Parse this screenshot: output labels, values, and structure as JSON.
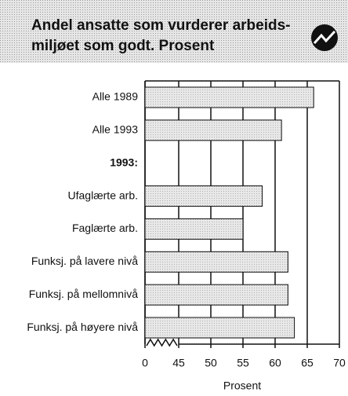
{
  "chart_data": {
    "type": "barh",
    "title": [
      "Andel ansatte som vurderer arbeids-",
      "miljøet som godt. Prosent"
    ],
    "categories": [
      "Alle 1989",
      "Alle 1993",
      "1993:",
      "Ufaglærte arb.",
      "Faglærte arb.",
      "Funksj. på lavere nivå",
      "Funksj. på mellomnivå",
      "Funksj. på høyere nivå"
    ],
    "values": [
      66,
      61,
      null,
      58,
      55,
      62,
      62,
      63
    ],
    "color": "#e0e0e0",
    "xlim": [
      0,
      70
    ],
    "xticks": [
      0,
      45,
      50,
      55,
      60,
      65,
      70
    ],
    "axis_break": [
      0,
      45
    ],
    "xlabel": "Prosent",
    "grid": true
  }
}
